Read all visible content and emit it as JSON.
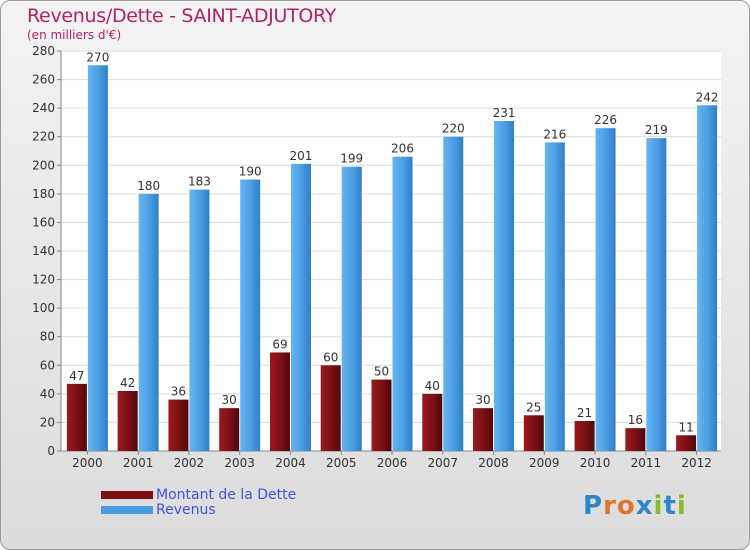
{
  "header": {
    "title": "Revenus/Dette - SAINT-ADJUTORY",
    "subtitle": "(en milliers d'€)"
  },
  "legend": {
    "items": [
      {
        "label": "Montant de la Dette",
        "color": "#7a1014"
      },
      {
        "label": "Revenus",
        "color": "#4a9de2"
      }
    ]
  },
  "logo": {
    "text": "Proxiti",
    "letters": [
      {
        "ch": "P",
        "color": "#2e87c8"
      },
      {
        "ch": "r",
        "color": "#e0762b"
      },
      {
        "ch": "o",
        "color": "#e0762b"
      },
      {
        "ch": "x",
        "color": "#2e87c8"
      },
      {
        "ch": "i",
        "color": "#8bbb2f"
      },
      {
        "ch": "t",
        "color": "#2e87c8"
      },
      {
        "ch": "i",
        "color": "#8bbb2f"
      }
    ]
  },
  "chart_data": {
    "type": "bar",
    "categories": [
      "2000",
      "2001",
      "2002",
      "2003",
      "2004",
      "2005",
      "2006",
      "2007",
      "2008",
      "2009",
      "2010",
      "2011",
      "2012"
    ],
    "series": [
      {
        "name": "Montant de la Dette",
        "values": [
          47,
          42,
          36,
          30,
          69,
          60,
          50,
          40,
          30,
          25,
          21,
          16,
          11
        ],
        "color": "#7a1014"
      },
      {
        "name": "Revenus",
        "values": [
          270,
          180,
          183,
          190,
          201,
          199,
          206,
          220,
          231,
          216,
          226,
          219,
          242
        ],
        "color": "#4a9de2"
      }
    ],
    "title": "Revenus/Dette - SAINT-ADJUTORY",
    "ylabel": "(en milliers d'€)",
    "ylim": [
      0,
      280
    ],
    "yticks": [
      0,
      20,
      40,
      60,
      80,
      100,
      120,
      140,
      160,
      180,
      200,
      220,
      240,
      260,
      280
    ],
    "grid": true,
    "legend_position": "bottom-left"
  }
}
